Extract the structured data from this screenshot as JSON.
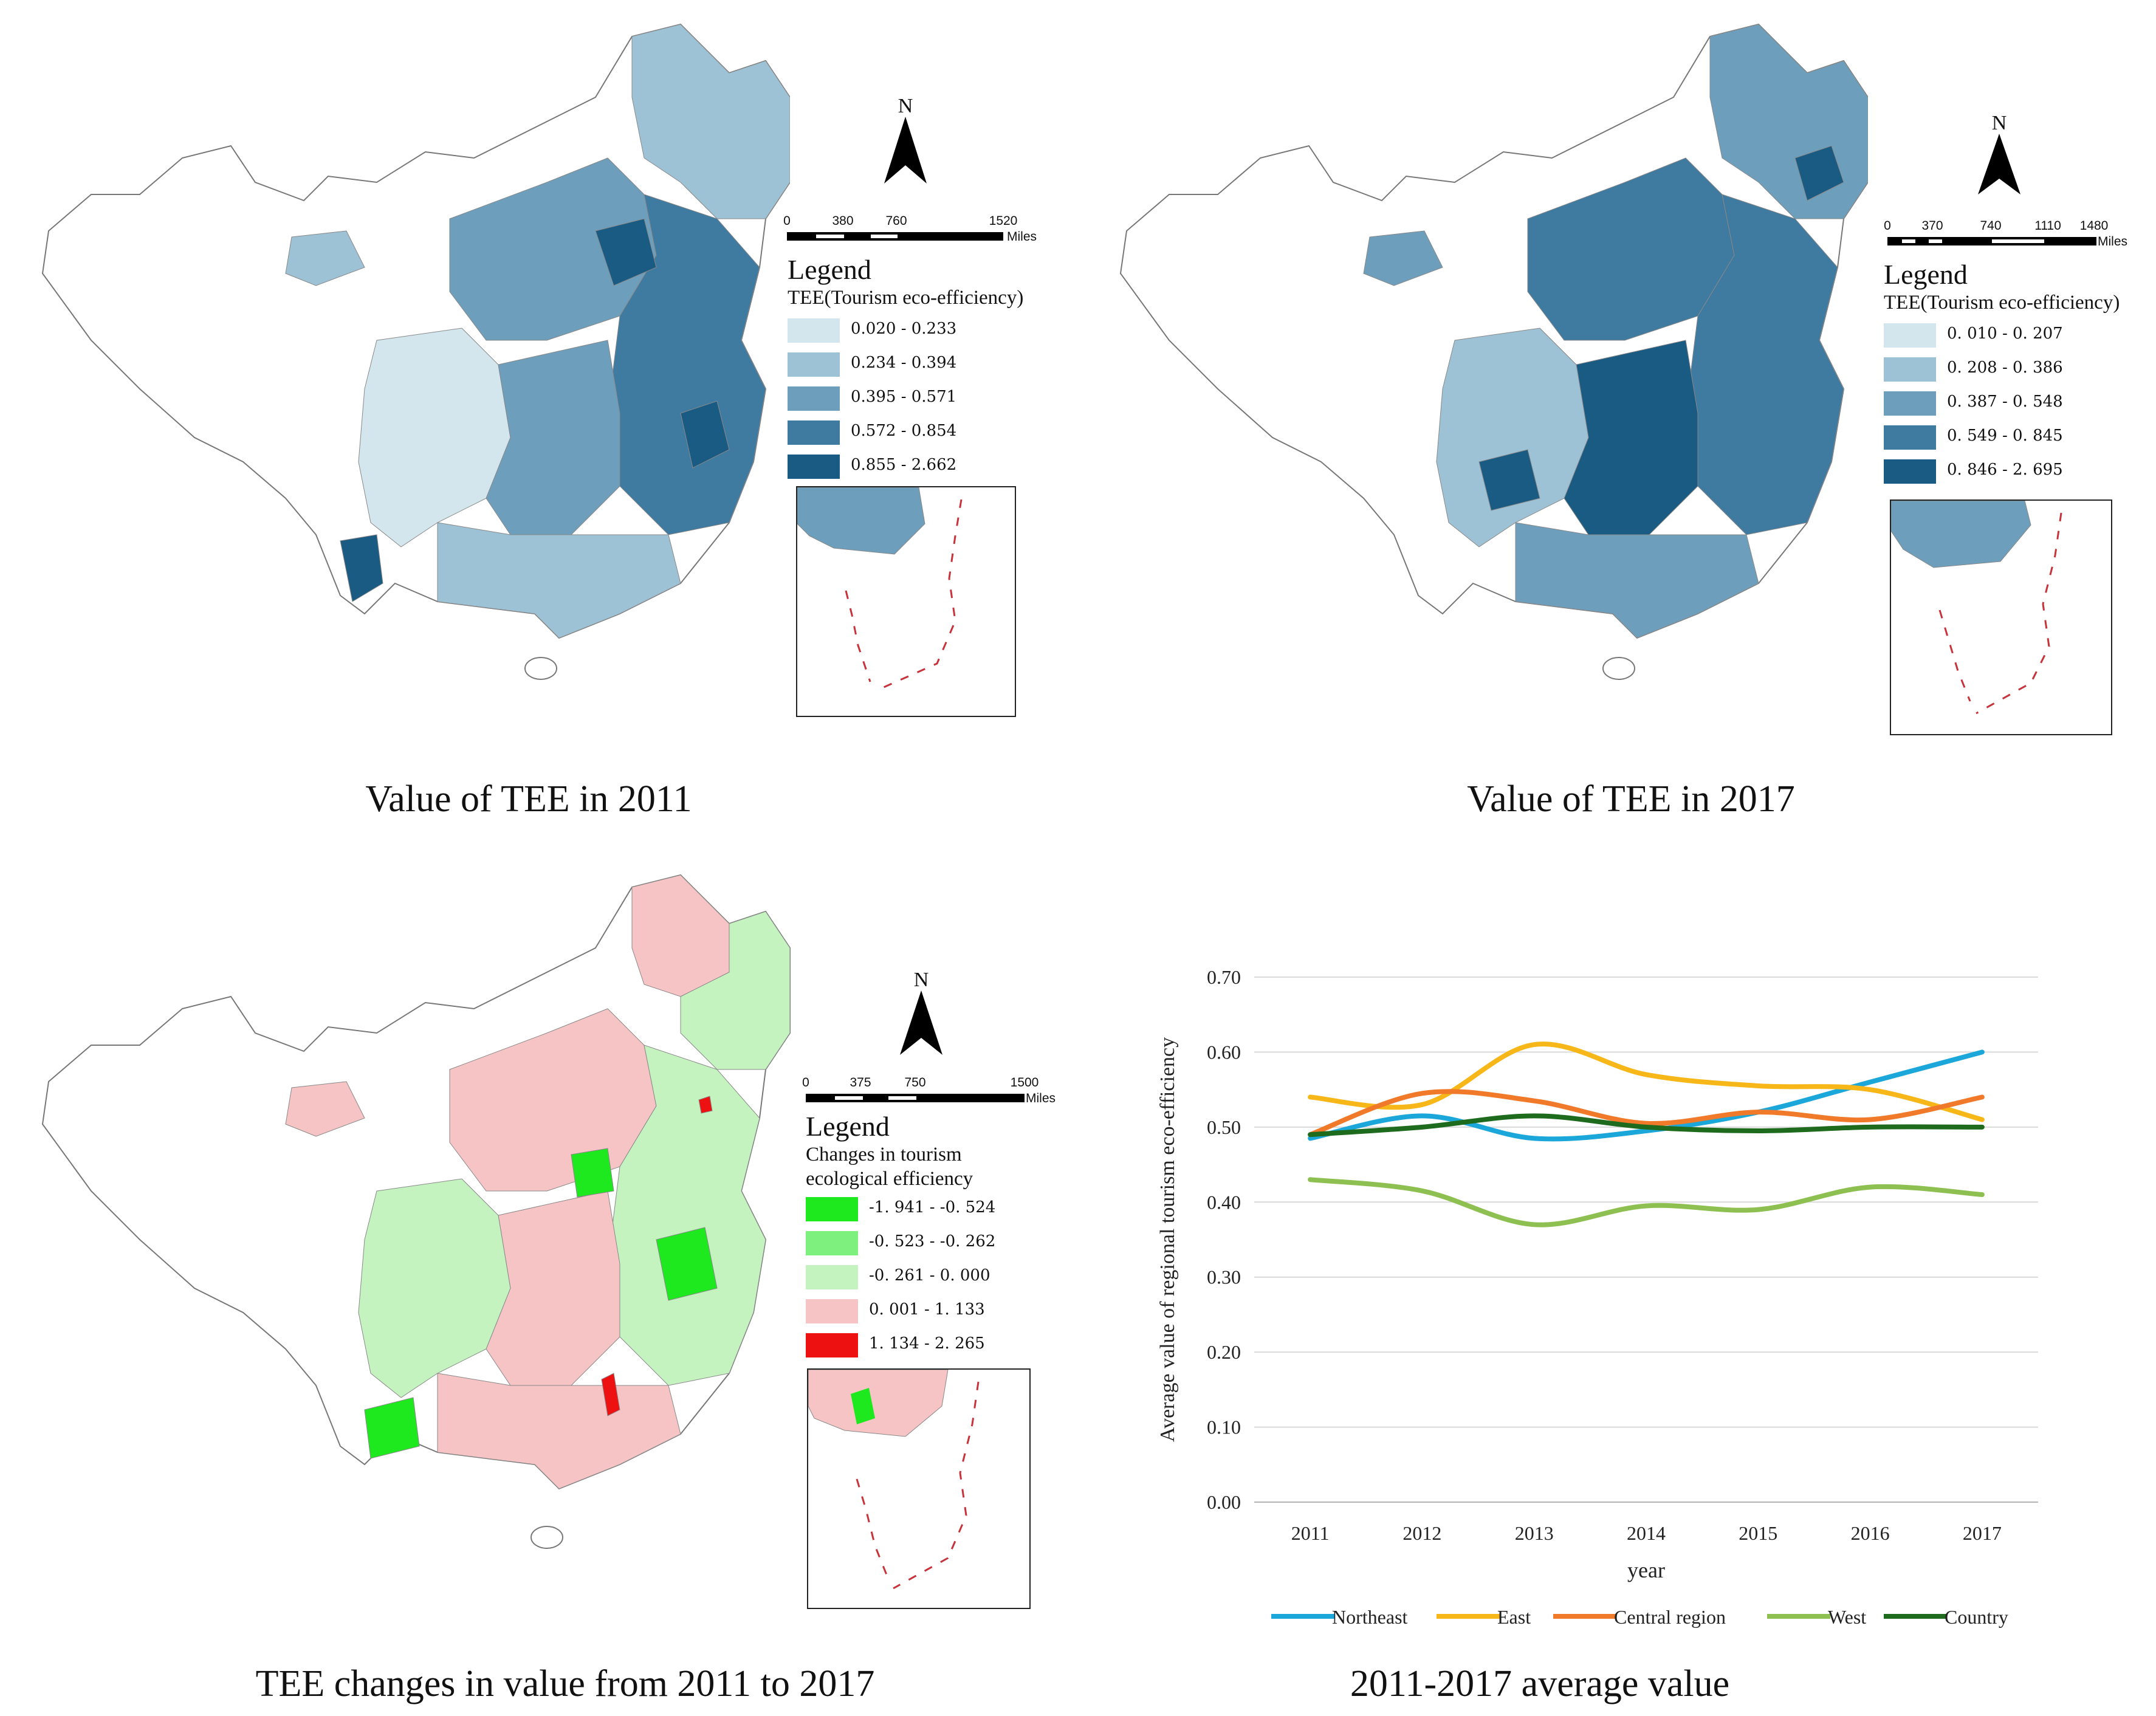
{
  "figure": {
    "panels": [
      {
        "id": "tee-2011",
        "caption": "Value of TEE  in 2011",
        "north_label": "N",
        "scale": {
          "ticks": [
            "0",
            "380",
            "760",
            "1520"
          ],
          "unit": "Miles"
        },
        "legend": {
          "title": "Legend",
          "subtitle": "TEE(Tourism eco-efficiency)",
          "classes": [
            {
              "label": "0.020 - 0.233",
              "color": "#d3e6ee"
            },
            {
              "label": "0.234 - 0.394",
              "color": "#9ec2d5"
            },
            {
              "label": "0.395 - 0.571",
              "color": "#6d9fbd"
            },
            {
              "label": "0.572 - 0.854",
              "color": "#3f7aa0"
            },
            {
              "label": "0.855 - 2.662",
              "color": "#1a5b84"
            }
          ]
        }
      },
      {
        "id": "tee-2017",
        "caption": "Value of TEE  in 2017",
        "north_label": "N",
        "scale": {
          "ticks": [
            "0",
            "370",
            "740",
            "1110",
            "1480"
          ],
          "unit": "Miles"
        },
        "legend": {
          "title": "Legend",
          "subtitle": "TEE(Tourism eco-efficiency)",
          "classes": [
            {
              "label": "0. 010  -  0. 207",
              "color": "#d3e6ee"
            },
            {
              "label": "0. 208  -  0. 386",
              "color": "#9ec2d5"
            },
            {
              "label": "0. 387  -  0. 548",
              "color": "#6d9fbd"
            },
            {
              "label": "0. 549  -  0. 845",
              "color": "#3f7aa0"
            },
            {
              "label": "0. 846  -  2. 695",
              "color": "#1a5b84"
            }
          ]
        }
      },
      {
        "id": "tee-change",
        "caption": "TEE changes in value from 2011 to 2017",
        "north_label": "N",
        "scale": {
          "ticks": [
            "0",
            "375",
            "750",
            "1500"
          ],
          "unit": "Miles"
        },
        "legend": {
          "title": "Legend",
          "subtitle": "Changes in tourism",
          "subtitle2": "ecological efficiency",
          "classes": [
            {
              "label": "-1. 941  -  -0. 524",
              "color": "#1ee81e"
            },
            {
              "label": "-0. 523  -  -0. 262",
              "color": "#7ef07e"
            },
            {
              "label": "-0. 261  -  0. 000",
              "color": "#c4f3c0"
            },
            {
              "label": "0. 001  -  1. 133",
              "color": "#f6c4c4"
            },
            {
              "label": "1. 134  -  2. 265",
              "color": "#ee1111"
            }
          ]
        }
      }
    ],
    "chart_caption": "2011-2017 average value"
  },
  "chart_data": {
    "type": "line",
    "title": "",
    "xlabel": "year",
    "ylabel": "Average value of regional tourism eco-efficiency",
    "categories": [
      "2011",
      "2012",
      "2013",
      "2014",
      "2015",
      "2016",
      "2017"
    ],
    "ylim": [
      0,
      0.7
    ],
    "yticks": [
      "0.00",
      "0.10",
      "0.20",
      "0.30",
      "0.40",
      "0.50",
      "0.60",
      "0.70"
    ],
    "grid": true,
    "legend_position": "bottom",
    "series": [
      {
        "name": "Northeast",
        "color": "#1ba7d9",
        "values": [
          0.485,
          0.515,
          0.485,
          0.495,
          0.52,
          0.56,
          0.6
        ]
      },
      {
        "name": "East",
        "color": "#f7b718",
        "values": [
          0.54,
          0.53,
          0.61,
          0.57,
          0.555,
          0.55,
          0.51
        ]
      },
      {
        "name": "Central region",
        "color": "#f07a2a",
        "values": [
          0.49,
          0.545,
          0.535,
          0.505,
          0.52,
          0.51,
          0.54
        ]
      },
      {
        "name": "West",
        "color": "#8dc050",
        "values": [
          0.43,
          0.415,
          0.37,
          0.395,
          0.39,
          0.42,
          0.41
        ]
      },
      {
        "name": "Country",
        "color": "#1e6b1e",
        "values": [
          0.49,
          0.5,
          0.515,
          0.5,
          0.495,
          0.5,
          0.5
        ]
      }
    ]
  }
}
